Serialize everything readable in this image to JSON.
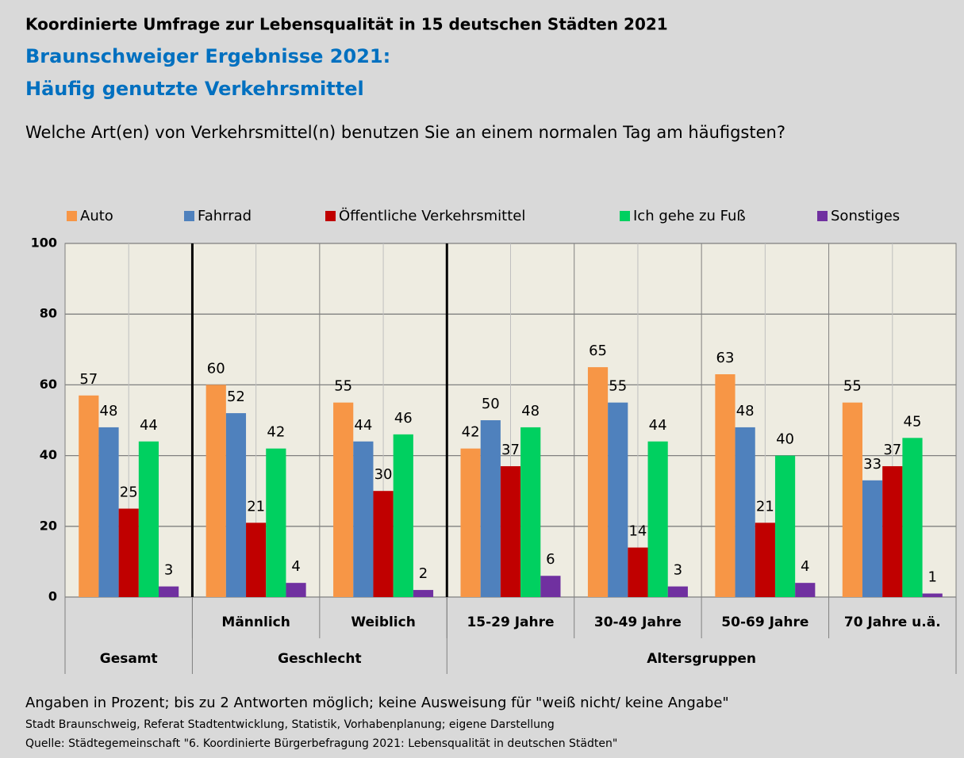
{
  "chart_data": {
    "type": "bar",
    "title": "Koordinierte Umfrage zur Lebensqualität in 15 deutschen Städten 2021",
    "subtitle": [
      "Braunschweiger Ergebnisse 2021:",
      "Häufig genutzte Verkehrsmittel"
    ],
    "question": "Welche Art(en) von Verkehrsmittel(n) benutzen Sie an einem normalen Tag am häufigsten?",
    "categories": [
      null,
      "Männlich",
      "Weiblich",
      "15-29 Jahre",
      "30-49 Jahre",
      "50-69 Jahre",
      "70 Jahre u.ä."
    ],
    "groups": [
      {
        "label": "Gesamt",
        "span": 1
      },
      {
        "label": "Geschlecht",
        "span": 2
      },
      {
        "label": "Altersgruppen",
        "span": 4
      }
    ],
    "series": [
      {
        "name": "Auto",
        "color": "#f79646",
        "values": [
          57,
          60,
          55,
          42,
          65,
          63,
          55
        ]
      },
      {
        "name": "Fahrrad",
        "color": "#4f81bd",
        "values": [
          48,
          52,
          44,
          50,
          55,
          48,
          33
        ]
      },
      {
        "name": "Öffentliche Verkehrsmittel",
        "color": "#c00000",
        "values": [
          25,
          21,
          30,
          37,
          14,
          21,
          37
        ]
      },
      {
        "name": "Ich gehe zu Fuß",
        "color": "#00d060",
        "values": [
          44,
          42,
          46,
          48,
          44,
          40,
          45
        ]
      },
      {
        "name": "Sonstiges",
        "color": "#7030a0",
        "values": [
          3,
          4,
          2,
          6,
          3,
          4,
          1
        ]
      }
    ],
    "ylim": [
      0,
      100
    ],
    "yticks": [
      0,
      20,
      40,
      60,
      80,
      100
    ],
    "grid": true,
    "legend": "top",
    "notes": [
      "Angaben in Prozent; bis zu 2 Antworten möglich; keine Ausweisung für \"weiß nicht/ keine Angabe\"",
      "Stadt Braunschweig, Referat Stadtentwicklung, Statistik, Vorhabenplanung; eigene Darstellung",
      "Quelle: Städtegemeinschaft \"6. Koordinierte Bürgerbefragung 2021: Lebensqualität in deutschen Städten\""
    ]
  }
}
